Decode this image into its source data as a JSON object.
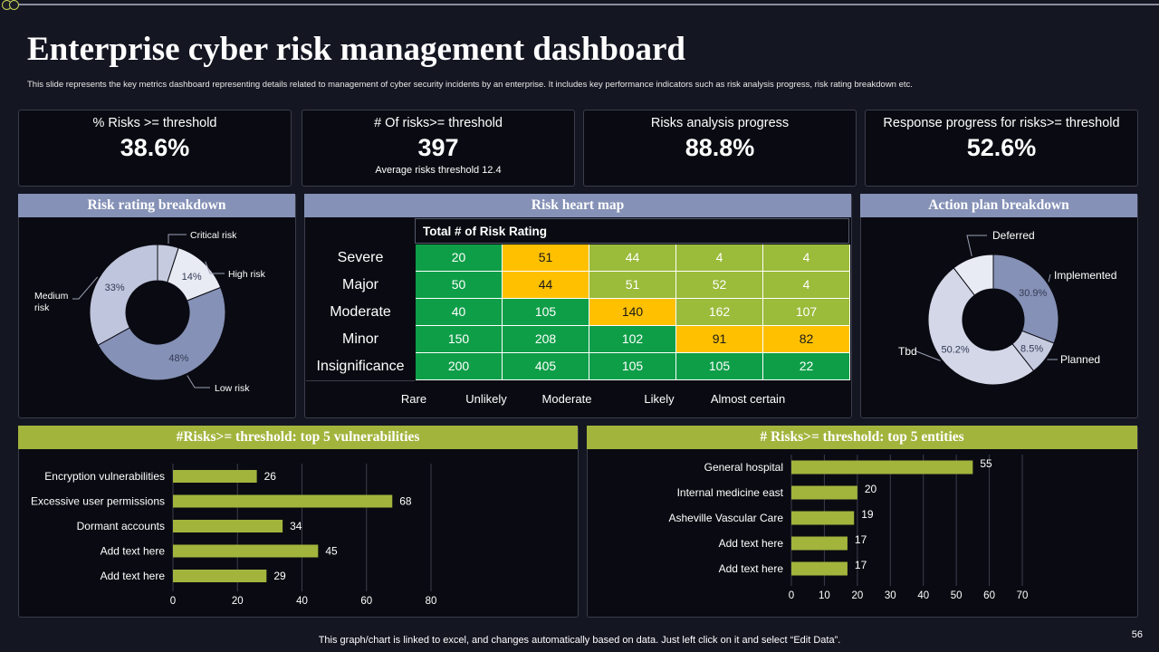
{
  "title": "Enterprise cyber risk management dashboard",
  "subtitle": "This slide represents the key metrics dashboard representing details related to management  of cyber security incidents by an enterprise. It includes key performance indicators such as risk analysis progress, risk rating breakdown etc.",
  "kpis": [
    {
      "label": "% Risks >= threshold",
      "value": "38.6%",
      "note": ""
    },
    {
      "label": "# Of risks>= threshold",
      "value": "397",
      "note": "Average risks threshold 12.4"
    },
    {
      "label": "Risks analysis progress",
      "value": "88.8%",
      "note": ""
    },
    {
      "label": "Response progress for risks>= threshold",
      "value": "52.6%",
      "note": ""
    }
  ],
  "panels": {
    "risk_rating": "Risk rating breakdown",
    "heat_map": "Risk heart map",
    "action_plan": "Action plan breakdown",
    "vulnerabilities": "#Risks>= threshold: top 5 vulnerabilities",
    "entities": "# Risks>= threshold: top 5 entities"
  },
  "colors": {
    "header_blue": "#8591b6",
    "header_green": "#a2b43c",
    "bar_green": "#a2b43c",
    "heat_dark_green": "#0e9e48",
    "heat_light_green": "#9bbb3a",
    "heat_yellow": "#ffc000"
  },
  "footnote": "This graph/chart is linked to excel,  and changes automatically based on data. Just left click on it and select “Edit Data”.",
  "page_number": "56",
  "chart_data": [
    {
      "id": "risk_rating",
      "type": "pie",
      "title": "Risk rating breakdown",
      "slices": [
        {
          "label": "Critical risk",
          "value": 5,
          "display": "",
          "color": "#c7cbe0"
        },
        {
          "label": "High risk",
          "value": 14,
          "display": "14%",
          "color": "#e9ebf4"
        },
        {
          "label": "Low risk",
          "value": 48,
          "display": "48%",
          "color": "#8591b6"
        },
        {
          "label": "Medium\nrisk",
          "value": 33,
          "display": "33%",
          "color": "#bfc5dc"
        }
      ]
    },
    {
      "id": "heat_map",
      "type": "heatmap",
      "title": "Risk heart map",
      "column_title": "Total # of Risk Rating",
      "rows": [
        "Severe",
        "Major",
        "Moderate",
        "Minor",
        "Insignificance"
      ],
      "columns": [
        "Rare",
        "Unlikely",
        "Moderate",
        "Likely",
        "Almost certain"
      ],
      "values": [
        [
          20,
          51,
          44,
          4,
          4
        ],
        [
          50,
          44,
          51,
          52,
          4
        ],
        [
          40,
          105,
          140,
          162,
          107
        ],
        [
          150,
          208,
          102,
          91,
          82
        ],
        [
          200,
          405,
          105,
          105,
          22
        ]
      ],
      "levels": [
        [
          "g",
          "y",
          "l",
          "l",
          "l"
        ],
        [
          "g",
          "y",
          "l",
          "l",
          "l"
        ],
        [
          "g",
          "g",
          "y",
          "l",
          "l"
        ],
        [
          "g",
          "g",
          "g",
          "y",
          "y"
        ],
        [
          "g",
          "g",
          "g",
          "g",
          "g"
        ]
      ]
    },
    {
      "id": "action_plan",
      "type": "pie",
      "title": "Action plan breakdown",
      "slices": [
        {
          "label": "Implemented",
          "value": 30.9,
          "display": "30.9%",
          "color": "#8591b6"
        },
        {
          "label": "Planned",
          "value": 8.5,
          "display": "8.5%",
          "color": "#c7cbe0"
        },
        {
          "label": "Tbd",
          "value": 50.2,
          "display": "50.2%",
          "color": "#d3d7e8"
        },
        {
          "label": "Deferred",
          "value": 10.4,
          "display": "",
          "color": "#e9ebf4"
        }
      ]
    },
    {
      "id": "vulnerabilities",
      "type": "bar",
      "orientation": "horizontal",
      "title": "#Risks>= threshold: top 5 vulnerabilities",
      "categories": [
        "Encryption vulnerabilities",
        "Excessive user permissions",
        "Dormant accounts",
        "Add text here",
        "Add text here"
      ],
      "values": [
        26,
        68,
        34,
        45,
        29
      ],
      "xlim": [
        0,
        80
      ],
      "ticks": [
        0,
        20,
        40,
        60,
        80
      ]
    },
    {
      "id": "entities",
      "type": "bar",
      "orientation": "horizontal",
      "title": "# Risks>= threshold: top 5 entities",
      "categories": [
        "General hospital",
        "Internal medicine east",
        "Asheville Vascular Care",
        "Add text here",
        "Add text here"
      ],
      "values": [
        55,
        20,
        19,
        17,
        17
      ],
      "xlim": [
        0,
        70
      ],
      "ticks": [
        0,
        10,
        20,
        30,
        40,
        50,
        60,
        70
      ]
    }
  ]
}
